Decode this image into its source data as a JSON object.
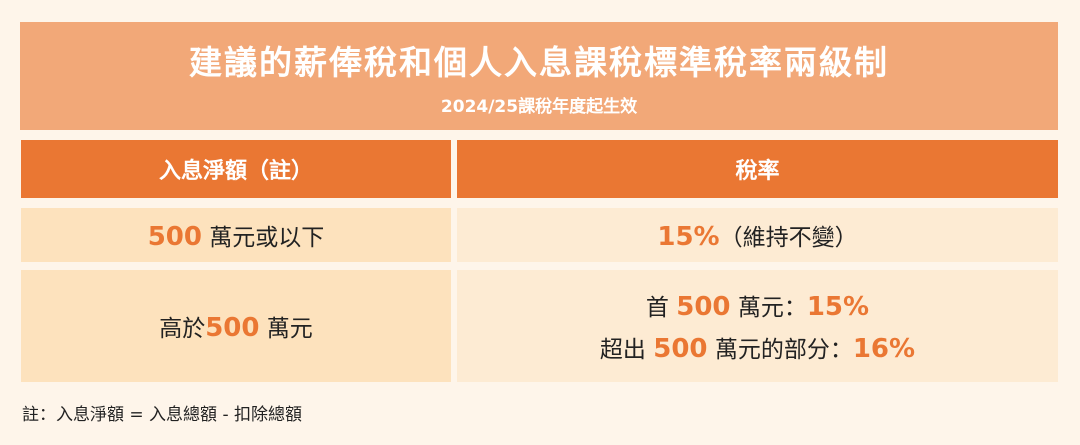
{
  "title": "建議的薪俸稅和個人入息課稅標準稅率兩級制",
  "subtitle": "2024/25課稅年度起生效",
  "headers": [
    "入息淨額（註）",
    "稅率"
  ],
  "row1": {
    "left_num": "500",
    "left_text": " 萬元或以下",
    "right_num": "15%",
    "right_text": "（維持不變）"
  },
  "row2": {
    "left_pre": "高於",
    "left_num": "500",
    "left_post": " 萬元",
    "line1_pre": "首 ",
    "line1_num": "500",
    "line1_post": " 萬元：",
    "line1_rate": "15%",
    "line2_pre": "超出 ",
    "line2_num": "500",
    "line2_post": " 萬元的部分：",
    "line2_rate": "16%"
  },
  "note": "註：入息淨額 = 入息總額 - 扣除總額",
  "colors": {
    "accent": "#ea7733",
    "title_bg": "#f2a878",
    "row_bg": "#fde2bd"
  }
}
